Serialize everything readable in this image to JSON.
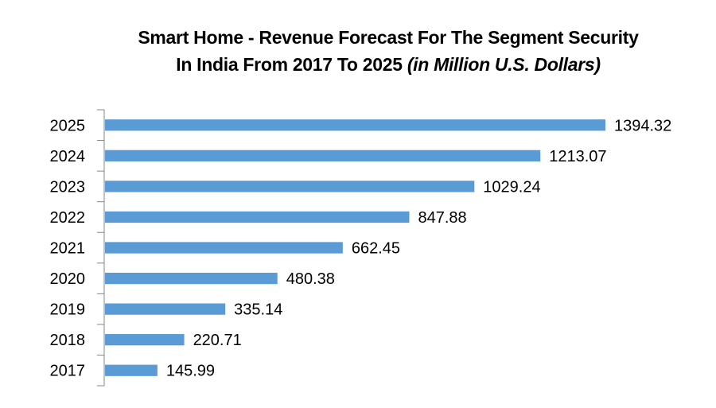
{
  "chart_data": {
    "type": "bar",
    "orientation": "horizontal",
    "title_line1": "Smart Home - Revenue Forecast For The Segment Security",
    "title_line2": "In India From 2017 To 2025 ",
    "title_line2_italic": "(in Million U.S. Dollars)",
    "xlabel": "",
    "ylabel": "",
    "categories": [
      "2017",
      "2018",
      "2019",
      "2020",
      "2021",
      "2022",
      "2023",
      "2024",
      "2025"
    ],
    "values": [
      145.99,
      220.71,
      335.14,
      480.38,
      662.45,
      847.88,
      1029.24,
      1213.07,
      1394.32
    ],
    "data_labels": [
      "145.99",
      "220.71",
      "335.14",
      "480.38",
      "662.45",
      "847.88",
      "1029.24",
      "1213.07",
      "1394.32"
    ],
    "bar_color": "#5b9bd5",
    "xlim": [
      0,
      1394.32
    ],
    "grid": false,
    "legend": "none",
    "x_axis_visible": false
  }
}
